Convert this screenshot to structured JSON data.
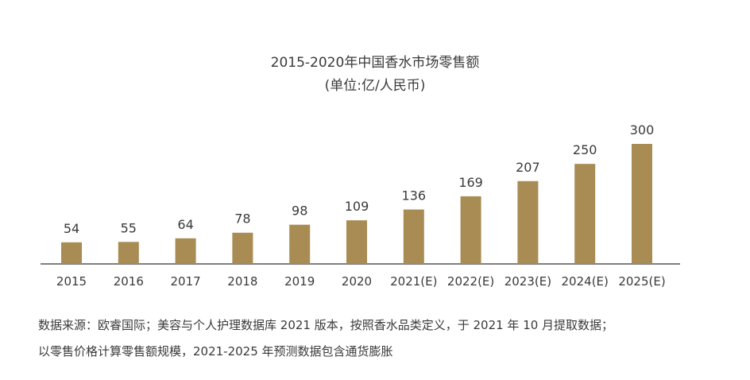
{
  "chart_data": {
    "type": "bar",
    "title": "2015-2020年中国香水市场零售额",
    "subtitle": "(单位:亿/人民币)",
    "categories": [
      "2015",
      "2016",
      "2017",
      "2018",
      "2019",
      "2020",
      "2021(E)",
      "2022(E)",
      "2023(E)",
      "2024(E)",
      "2025(E)"
    ],
    "values": [
      54,
      55,
      64,
      78,
      98,
      109,
      136,
      169,
      207,
      250,
      300
    ],
    "ylim": [
      0,
      300
    ],
    "grid": false,
    "legend": "none",
    "bar_color": "#a88c54",
    "axis_color": "#555555"
  },
  "notes": {
    "line1": "数据来源：欧睿国际；美容与个人护理数据库 2021 版本，按照香水品类定义，于 2021 年 10 月提取数据；",
    "line2": "以零售价格计算零售额规模，2021-2025 年预测数据包含通货膨胀"
  }
}
